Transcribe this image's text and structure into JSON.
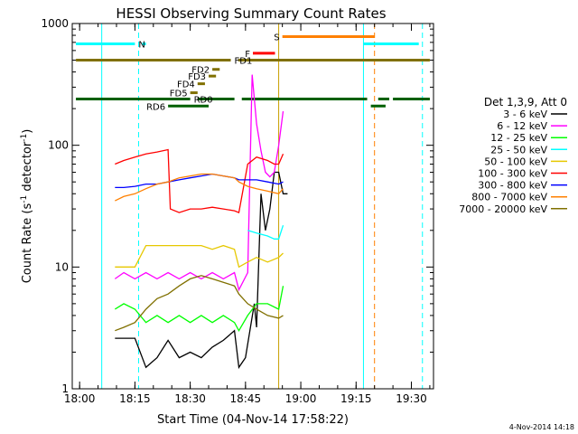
{
  "chart_data": {
    "type": "line",
    "title": "HESSI Observing Summary Count Rates",
    "xlabel": "Start Time (04-Nov-14 17:58:22)",
    "ylabel": "Count Rate (s",
    "ylabel_sup1": "-1",
    "ylabel_mid": " detector",
    "ylabel_sup2": "-1",
    "ylabel_end": ")",
    "y_scale": "log",
    "ylim": [
      1,
      1000
    ],
    "xlim": [
      "17:58",
      "19:36"
    ],
    "x_ticks": [
      "18:00",
      "18:15",
      "18:30",
      "18:45",
      "19:00",
      "19:15",
      "19:30"
    ],
    "y_ticks": [
      "1",
      "10",
      "100",
      "1000"
    ],
    "timestamp": "4-Nov-2014 14:18",
    "legend_title": "Det 1,3,9, Att 0",
    "legend_position": "right",
    "series": [
      {
        "name": "3 - 6 keV",
        "color": "#000000",
        "points": [
          [
            18.16,
            2.6
          ],
          [
            18.2,
            2.6
          ],
          [
            18.25,
            2.6
          ],
          [
            18.3,
            1.5
          ],
          [
            18.35,
            1.8
          ],
          [
            18.4,
            2.5
          ],
          [
            18.45,
            1.8
          ],
          [
            18.5,
            2.0
          ],
          [
            18.55,
            1.8
          ],
          [
            18.6,
            2.2
          ],
          [
            18.65,
            2.5
          ],
          [
            18.7,
            3.0
          ],
          [
            18.72,
            1.5
          ],
          [
            18.75,
            1.8
          ],
          [
            18.79,
            5.0
          ],
          [
            18.8,
            3.2
          ],
          [
            18.82,
            40
          ],
          [
            18.84,
            20
          ],
          [
            18.86,
            30
          ],
          [
            18.88,
            60
          ],
          [
            18.9,
            60
          ],
          [
            18.92,
            40
          ],
          [
            18.94,
            40
          ]
        ]
      },
      {
        "name": "6 - 12 keV",
        "color": "#ff00ff",
        "points": [
          [
            18.16,
            8
          ],
          [
            18.2,
            9
          ],
          [
            18.25,
            8
          ],
          [
            18.3,
            9
          ],
          [
            18.35,
            8
          ],
          [
            18.4,
            9
          ],
          [
            18.45,
            8
          ],
          [
            18.5,
            9
          ],
          [
            18.55,
            8
          ],
          [
            18.6,
            9
          ],
          [
            18.65,
            8
          ],
          [
            18.7,
            9
          ],
          [
            18.72,
            6.5
          ],
          [
            18.76,
            9
          ],
          [
            18.78,
            380
          ],
          [
            18.8,
            150
          ],
          [
            18.82,
            90
          ],
          [
            18.84,
            60
          ],
          [
            18.86,
            55
          ],
          [
            18.88,
            60
          ],
          [
            18.9,
            100
          ],
          [
            18.92,
            190
          ]
        ]
      },
      {
        "name": "12 - 25 keV",
        "color": "#00ff00",
        "points": [
          [
            18.16,
            4.5
          ],
          [
            18.2,
            5
          ],
          [
            18.25,
            4.5
          ],
          [
            18.3,
            3.5
          ],
          [
            18.35,
            4
          ],
          [
            18.4,
            3.5
          ],
          [
            18.45,
            4
          ],
          [
            18.5,
            3.5
          ],
          [
            18.55,
            4
          ],
          [
            18.6,
            3.5
          ],
          [
            18.65,
            4
          ],
          [
            18.7,
            3.5
          ],
          [
            18.72,
            3.0
          ],
          [
            18.76,
            4
          ],
          [
            18.8,
            5
          ],
          [
            18.85,
            5
          ],
          [
            18.9,
            4.5
          ],
          [
            18.92,
            7
          ]
        ]
      },
      {
        "name": "25 - 50 keV",
        "color": "#00ffff",
        "points": [
          [
            18.76,
            20
          ],
          [
            18.8,
            19
          ],
          [
            18.85,
            18
          ],
          [
            18.88,
            17
          ],
          [
            18.9,
            17
          ],
          [
            18.92,
            22
          ]
        ]
      },
      {
        "name": "50 - 100 keV",
        "color": "#e6c800",
        "points": [
          [
            18.16,
            10
          ],
          [
            18.2,
            10
          ],
          [
            18.25,
            10
          ],
          [
            18.3,
            15
          ],
          [
            18.35,
            15
          ],
          [
            18.4,
            15
          ],
          [
            18.45,
            15
          ],
          [
            18.5,
            15
          ],
          [
            18.55,
            15
          ],
          [
            18.6,
            14
          ],
          [
            18.65,
            15
          ],
          [
            18.7,
            14
          ],
          [
            18.72,
            10
          ],
          [
            18.76,
            11
          ],
          [
            18.8,
            12
          ],
          [
            18.85,
            11
          ],
          [
            18.9,
            12
          ],
          [
            18.92,
            13
          ]
        ]
      },
      {
        "name": "100 - 300 keV",
        "color": "#ff0000",
        "points": [
          [
            18.16,
            70
          ],
          [
            18.2,
            75
          ],
          [
            18.25,
            80
          ],
          [
            18.3,
            85
          ],
          [
            18.35,
            88
          ],
          [
            18.4,
            92
          ],
          [
            18.41,
            30
          ],
          [
            18.45,
            28
          ],
          [
            18.5,
            30
          ],
          [
            18.55,
            30
          ],
          [
            18.6,
            31
          ],
          [
            18.65,
            30
          ],
          [
            18.7,
            29
          ],
          [
            18.72,
            28
          ],
          [
            18.76,
            70
          ],
          [
            18.8,
            80
          ],
          [
            18.85,
            75
          ],
          [
            18.88,
            70
          ],
          [
            18.9,
            70
          ],
          [
            18.92,
            85
          ]
        ]
      },
      {
        "name": "300 - 800 keV",
        "color": "#0000ff",
        "points": [
          [
            18.16,
            45
          ],
          [
            18.2,
            45
          ],
          [
            18.25,
            46
          ],
          [
            18.3,
            48
          ],
          [
            18.35,
            48
          ],
          [
            18.4,
            50
          ],
          [
            18.45,
            52
          ],
          [
            18.5,
            54
          ],
          [
            18.55,
            56
          ],
          [
            18.6,
            58
          ],
          [
            18.65,
            56
          ],
          [
            18.7,
            54
          ],
          [
            18.72,
            52
          ],
          [
            18.76,
            52
          ],
          [
            18.8,
            52
          ],
          [
            18.85,
            50
          ],
          [
            18.9,
            48
          ],
          [
            18.92,
            50
          ]
        ]
      },
      {
        "name": "800 - 7000 keV",
        "color": "#ff8000",
        "points": [
          [
            18.16,
            35
          ],
          [
            18.2,
            38
          ],
          [
            18.25,
            40
          ],
          [
            18.3,
            44
          ],
          [
            18.35,
            48
          ],
          [
            18.4,
            50
          ],
          [
            18.45,
            54
          ],
          [
            18.5,
            56
          ],
          [
            18.55,
            58
          ],
          [
            18.6,
            58
          ],
          [
            18.65,
            56
          ],
          [
            18.7,
            54
          ],
          [
            18.72,
            50
          ],
          [
            18.76,
            46
          ],
          [
            18.8,
            44
          ],
          [
            18.85,
            42
          ],
          [
            18.9,
            40
          ],
          [
            18.92,
            44
          ]
        ]
      },
      {
        "name": "7000 - 20000 keV",
        "color": "#807000",
        "points": [
          [
            18.16,
            3.0
          ],
          [
            18.2,
            3.2
          ],
          [
            18.25,
            3.5
          ],
          [
            18.3,
            4.5
          ],
          [
            18.35,
            5.5
          ],
          [
            18.4,
            6.0
          ],
          [
            18.45,
            7.0
          ],
          [
            18.5,
            8.0
          ],
          [
            18.55,
            8.5
          ],
          [
            18.6,
            8.0
          ],
          [
            18.65,
            7.5
          ],
          [
            18.7,
            7.0
          ],
          [
            18.72,
            6.0
          ],
          [
            18.76,
            5.0
          ],
          [
            18.8,
            4.5
          ],
          [
            18.85,
            4.0
          ],
          [
            18.9,
            3.8
          ],
          [
            18.92,
            4.0
          ]
        ]
      }
    ],
    "flag_bars": [
      {
        "label": "N",
        "color": "#00ffff",
        "value": 680,
        "segments": [
          [
            "17:59",
            "18:15"
          ],
          [
            "18:17",
            "18:18"
          ],
          [
            "19:17",
            "19:32"
          ]
        ]
      },
      {
        "label": "S",
        "color": "#ff8000",
        "value": 780,
        "segments": [
          [
            "18:55",
            "19:20"
          ]
        ]
      },
      {
        "label": "F",
        "color": "#ff0000",
        "value": 570,
        "segments": [
          [
            "18:47",
            "18:53"
          ]
        ]
      },
      {
        "label": "FD1",
        "color": "#807000",
        "value": 500,
        "segments": [
          [
            "17:59",
            "18:41"
          ],
          [
            "18:43",
            "19:35"
          ]
        ]
      },
      {
        "label": "FD2",
        "color": "#807000",
        "value": 420,
        "segments": [
          [
            "18:36",
            "18:38"
          ]
        ]
      },
      {
        "label": "FD3",
        "color": "#807000",
        "value": 370,
        "segments": [
          [
            "18:35",
            "18:37"
          ]
        ]
      },
      {
        "label": "FD4",
        "color": "#807000",
        "value": 320,
        "segments": [
          [
            "18:32",
            "18:34"
          ]
        ]
      },
      {
        "label": "FD5",
        "color": "#807000",
        "value": 270,
        "segments": [
          [
            "18:30",
            "18:32"
          ]
        ]
      },
      {
        "label": "RD0",
        "color": "#006000",
        "value": 240,
        "segments": [
          [
            "17:59",
            "18:30"
          ],
          [
            "18:32",
            "18:42"
          ],
          [
            "18:44",
            "19:18"
          ],
          [
            "19:21",
            "19:24"
          ],
          [
            "19:25",
            "19:35"
          ]
        ]
      },
      {
        "label": "RD6",
        "color": "#006000",
        "value": 210,
        "segments": [
          [
            "18:24",
            "18:35"
          ],
          [
            "19:19",
            "19:23"
          ]
        ]
      }
    ],
    "vlines": [
      {
        "x": "18:06",
        "color": "#00ffff",
        "style": "solid"
      },
      {
        "x": "18:16",
        "color": "#00ffff",
        "style": "dashed"
      },
      {
        "x": "18:54",
        "color": "#c8a000",
        "style": "solid"
      },
      {
        "x": "19:17",
        "color": "#00ffff",
        "style": "solid"
      },
      {
        "x": "19:20",
        "color": "#ff8000",
        "style": "dashed"
      },
      {
        "x": "19:33",
        "color": "#00ffff",
        "style": "dashed"
      }
    ],
    "grid": false
  }
}
